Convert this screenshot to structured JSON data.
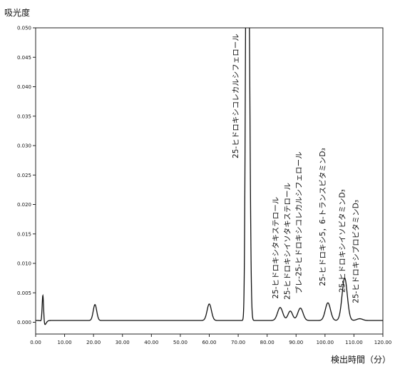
{
  "chart_data": {
    "type": "line",
    "ylabel": "吸光度",
    "xlabel": "検出時間（分）",
    "xlim": [
      0,
      120
    ],
    "ylim": [
      -0.002,
      0.05
    ],
    "x_ticks": [
      0,
      10,
      20,
      30,
      40,
      50,
      60,
      70,
      80,
      90,
      100,
      110,
      120
    ],
    "x_tick_labels": [
      "0.00",
      "10.00",
      "20.00",
      "30.00",
      "40.00",
      "50.00",
      "60.00",
      "70.00",
      "80.00",
      "90.00",
      "100.00",
      "110.00",
      "120.00"
    ],
    "y_ticks": [
      0,
      0.005,
      0.01,
      0.015,
      0.02,
      0.025,
      0.03,
      0.035,
      0.04,
      0.045,
      0.05
    ],
    "y_tick_labels": [
      "0.000",
      "0.005",
      "0.010",
      "0.015",
      "0.020",
      "0.025",
      "0.030",
      "0.035",
      "0.040",
      "0.045",
      "0.050"
    ],
    "grid": false,
    "baseline": 0.0003,
    "peaks": [
      {
        "x": 2.5,
        "height": 0.0048,
        "width": 0.25
      },
      {
        "x": 3.0,
        "height": -0.0008,
        "width": 0.6
      },
      {
        "x": 20.5,
        "height": 0.0027,
        "width": 0.6
      },
      {
        "x": 60.0,
        "height": 0.0028,
        "width": 0.75
      },
      {
        "x": 72.8,
        "height": 0.06,
        "width": 0.35
      },
      {
        "x": 73.6,
        "height": 0.06,
        "width": 0.45
      },
      {
        "x": 84.5,
        "height": 0.0022,
        "width": 0.9
      },
      {
        "x": 88.0,
        "height": 0.0016,
        "width": 0.8
      },
      {
        "x": 91.5,
        "height": 0.0021,
        "width": 0.9
      },
      {
        "x": 101.0,
        "height": 0.003,
        "width": 0.9
      },
      {
        "x": 106.8,
        "height": 0.0072,
        "width": 0.9
      },
      {
        "x": 112.0,
        "height": 0.0003,
        "width": 1.0
      }
    ],
    "annotations": [
      {
        "text": "25-ヒドロキシコレカルシフェロール",
        "x": 70.0,
        "y_top": 0.049
      },
      {
        "text": "25-ヒドロキシタキステロール",
        "x": 83.8,
        "y_top": 0.0213
      },
      {
        "text": "25-ヒドロキシイソタキステロール",
        "x": 87.8,
        "y_top": 0.0237
      },
      {
        "text": "プレ-25-ヒドロキシコレカルシフェロール",
        "x": 91.8,
        "y_top": 0.029
      },
      {
        "text": "25-ヒドロキシ5，6-トランスビタミンD₃",
        "x": 100.0,
        "y_top": 0.0296
      },
      {
        "text": "25-ヒドロキシイソビタミンD₃",
        "x": 106.8,
        "y_top": 0.0226
      },
      {
        "text": "25-ヒドロキシプロビタミンD₃",
        "x": 111.5,
        "y_top": 0.0208
      }
    ]
  }
}
